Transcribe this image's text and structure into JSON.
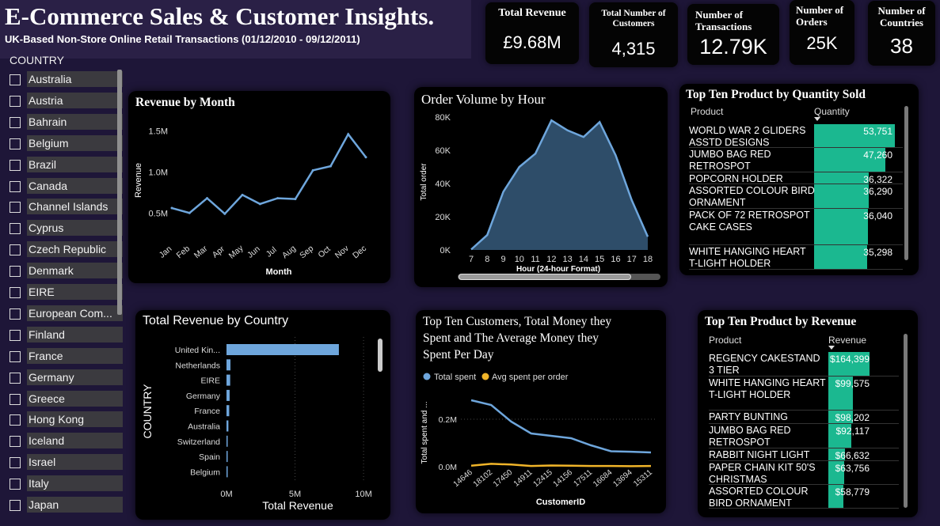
{
  "header": {
    "title": "E-Commerce Sales & Customer Insights.",
    "subtitle": "UK-Based Non-Store Online Retail Transactions (01/12/2010 - 09/12/2011)"
  },
  "kpis": {
    "revenue": {
      "label": "Total Revenue",
      "value": "£9.68M"
    },
    "customers": {
      "label": "Total Number of Customers",
      "value": "4,315"
    },
    "transactions": {
      "label": "Number of Transactions",
      "value": "12.79K"
    },
    "orders": {
      "label": "Number of Orders",
      "value": "25K"
    },
    "countries": {
      "label": "Number of Countries",
      "value": "38"
    }
  },
  "country_filter": {
    "heading": "COUNTRY",
    "items": [
      "Australia",
      "Austria",
      "Bahrain",
      "Belgium",
      "Brazil",
      "Canada",
      "Channel Islands",
      "Cyprus",
      "Czech Republic",
      "Denmark",
      "EIRE",
      "European Com...",
      "Finland",
      "France",
      "Germany",
      "Greece",
      "Hong Kong",
      "Iceland",
      "Israel",
      "Italy",
      "Japan"
    ]
  },
  "charts": {
    "revenue_by_month": {
      "title": "Revenue by Month"
    },
    "order_volume_by_hour": {
      "title": "Order Volume by Hour"
    },
    "revenue_by_country": {
      "title": "Total Revenue by Country"
    },
    "top_customers": {
      "title_line1": "Top Ten Customers, Total Money they",
      "title_line2": "Spent and The Average Money they",
      "title_line3": "Spent Per Day"
    }
  },
  "top_products_quantity": {
    "title": "Top Ten Product by Quantity Sold",
    "col_product": "Product",
    "col_value": "Quantity",
    "rows": [
      {
        "name": "WORLD WAR 2 GLIDERS ASSTD DESIGNS",
        "value": "53,751",
        "num": 53751
      },
      {
        "name": "JUMBO BAG RED RETROSPOT",
        "value": "47,260",
        "num": 47260
      },
      {
        "name": "POPCORN HOLDER",
        "value": "36,322",
        "num": 36322
      },
      {
        "name": "ASSORTED COLOUR BIRD ORNAMENT",
        "value": "36,290",
        "num": 36290
      },
      {
        "name": "PACK OF 72 RETROSPOT CAKE CASES",
        "value": "36,040",
        "num": 36040
      },
      {
        "name": "WHITE HANGING HEART T-LIGHT HOLDER",
        "value": "35,298",
        "num": 35298
      }
    ]
  },
  "top_products_revenue": {
    "title": "Top Ten Product by Revenue",
    "col_product": "Product",
    "col_value": "Revenue",
    "rows": [
      {
        "name": "REGENCY CAKESTAND 3 TIER",
        "value": "$164,399",
        "num": 164399
      },
      {
        "name": "WHITE HANGING HEART T-LIGHT HOLDER",
        "value": "$99,575",
        "num": 99575
      },
      {
        "name": "PARTY BUNTING",
        "value": "$98,202",
        "num": 98202
      },
      {
        "name": "JUMBO BAG RED RETROSPOT",
        "value": "$92,117",
        "num": 92117
      },
      {
        "name": "RABBIT NIGHT LIGHT",
        "value": "$66,632",
        "num": 66632
      },
      {
        "name": "PAPER CHAIN KIT 50'S CHRISTMAS",
        "value": "$63,756",
        "num": 63756
      },
      {
        "name": "ASSORTED COLOUR BIRD ORNAMENT",
        "value": "$58,779",
        "num": 58779
      }
    ]
  },
  "chart_data": [
    {
      "id": "revenue_by_month",
      "type": "line",
      "title": "Revenue by Month",
      "xlabel": "Month",
      "ylabel": "Revenue",
      "categories": [
        "Jan",
        "Feb",
        "Mar",
        "Apr",
        "May",
        "Jun",
        "Jul",
        "Aug",
        "Sep",
        "Oct",
        "Nov",
        "Dec"
      ],
      "values": [
        0.56,
        0.5,
        0.68,
        0.49,
        0.72,
        0.61,
        0.68,
        0.67,
        1.02,
        1.07,
        1.46,
        1.18
      ],
      "yticks": [
        0.5,
        1.0,
        1.5
      ],
      "ytick_labels": [
        "0.5M",
        "1.0M",
        "1.5M"
      ],
      "ylim": [
        0.3,
        1.65
      ],
      "color": "#6ea6dc"
    },
    {
      "id": "order_volume_by_hour",
      "type": "area",
      "title": "Order Volume by Hour",
      "xlabel": "Hour (24-hour Format)",
      "ylabel": "Total order",
      "categories": [
        "7",
        "8",
        "9",
        "10",
        "11",
        "12",
        "13",
        "14",
        "15",
        "16",
        "17",
        "18"
      ],
      "values": [
        300,
        9000,
        35000,
        50000,
        58000,
        78000,
        72000,
        68000,
        77000,
        57000,
        30000,
        8000
      ],
      "yticks": [
        0,
        20000,
        40000,
        60000,
        80000
      ],
      "ytick_labels": [
        "0K",
        "20K",
        "40K",
        "60K",
        "80K"
      ],
      "ylim": [
        0,
        80000
      ],
      "color": "#6ea6dc",
      "fill": "#2e4d69"
    },
    {
      "id": "revenue_by_country",
      "type": "bar",
      "orientation": "horizontal",
      "title": "Total Revenue by Country",
      "xlabel": "Total Revenue",
      "ylabel": "COUNTRY",
      "categories": [
        "United Kin...",
        "Netherlands",
        "EIRE",
        "Germany",
        "France",
        "Australia",
        "Switzerland",
        "Spain",
        "Belgium"
      ],
      "values": [
        8.2,
        0.29,
        0.27,
        0.23,
        0.2,
        0.14,
        0.06,
        0.05,
        0.04
      ],
      "xticks": [
        0,
        5,
        10
      ],
      "xtick_labels": [
        "0M",
        "5M",
        "10M"
      ],
      "xlim": [
        0,
        10.4
      ],
      "color": "#6ea6dc"
    },
    {
      "id": "top_customers",
      "type": "line",
      "title": "Top Ten Customers, Total Money they Spent and The Average Money they Spent Per Day",
      "xlabel": "CustomerID",
      "ylabel": "Total spent and ...",
      "categories": [
        "14646",
        "18102",
        "17450",
        "14911",
        "12415",
        "14156",
        "17511",
        "16684",
        "13694",
        "15311"
      ],
      "series": [
        {
          "name": "Total spent",
          "values": [
            0.28,
            0.26,
            0.19,
            0.14,
            0.13,
            0.12,
            0.09,
            0.065,
            0.063,
            0.06
          ],
          "color": "#6ea6dc"
        },
        {
          "name": "Avg spent per order",
          "values": [
            0.004,
            0.012,
            0.009,
            0.003,
            0.005,
            0.004,
            0.003,
            0.003,
            0.002,
            0.003
          ],
          "color": "#f0b429"
        }
      ],
      "yticks": [
        0,
        0.2
      ],
      "ytick_labels": [
        "0.0M",
        "0.2M"
      ],
      "ylim": [
        0,
        0.3
      ]
    }
  ]
}
